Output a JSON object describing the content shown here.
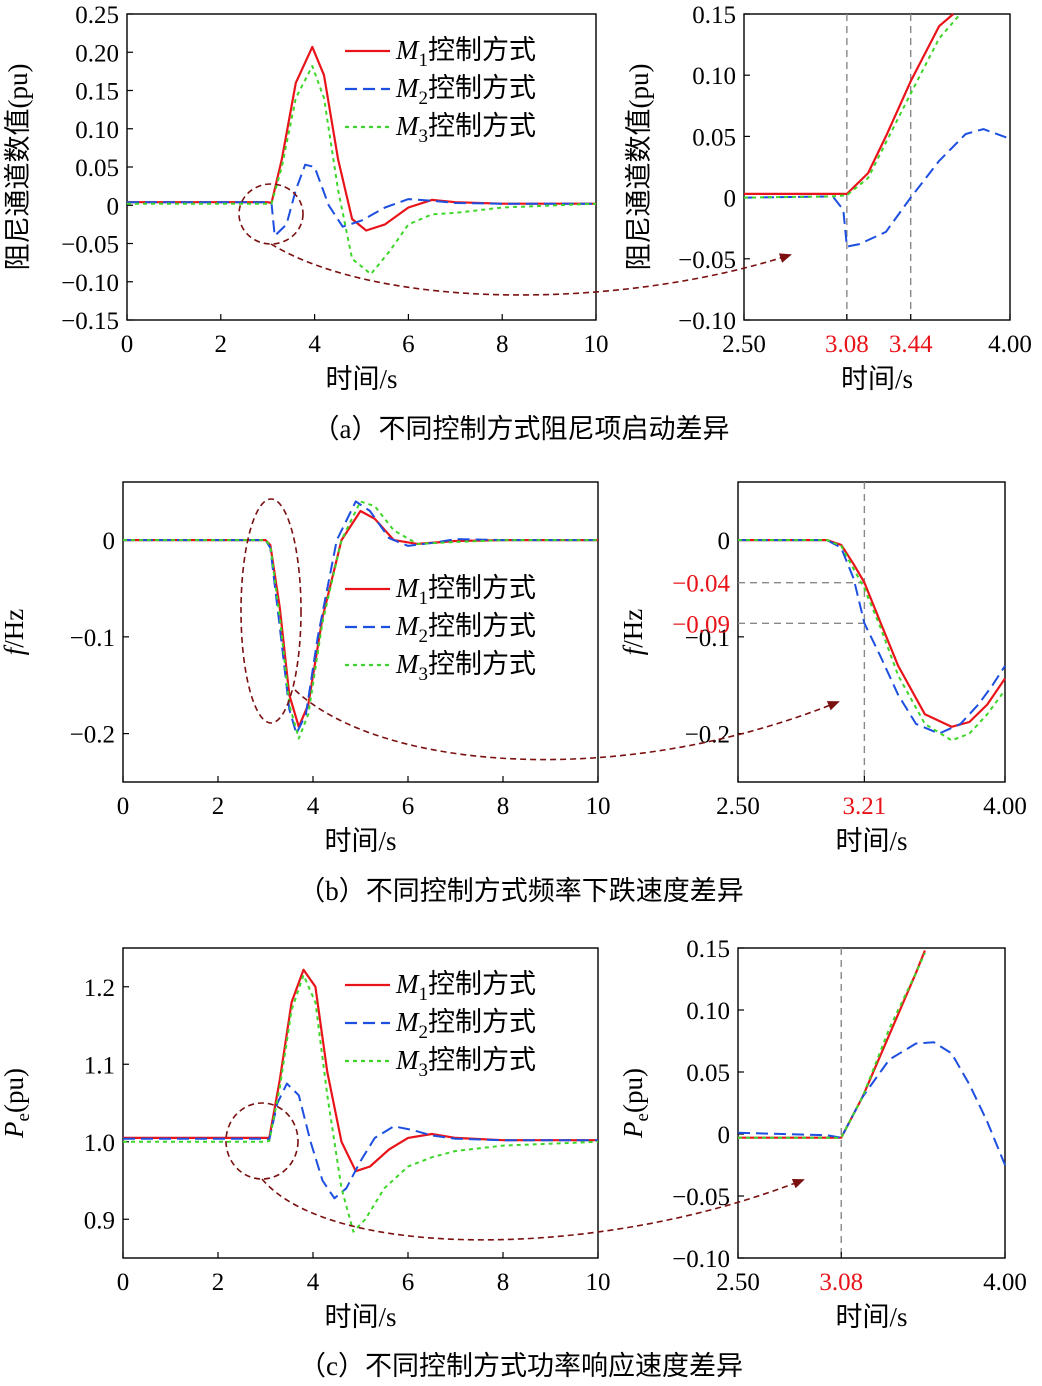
{
  "panels": [
    {
      "caption": "（a）不同控制方式阻尼项启动差异",
      "chart_data": [
        {
          "type": "line",
          "xlabel": "时间/s",
          "ylabel": "阻尼通道数值(pu)",
          "xlim": [
            0,
            10
          ],
          "ylim": [
            -0.15,
            0.25
          ],
          "xticks": [
            "0",
            "2",
            "4",
            "6",
            "8",
            "10"
          ],
          "yticks": [
            "−0.15",
            "−0.10",
            "−0.05",
            "0",
            "0.05",
            "0.10",
            "0.15",
            "0.20",
            "0.25"
          ],
          "legend": "top-right",
          "series": [
            {
              "name": "M1控制方式",
              "legend_main": "M",
              "legend_sub": "1",
              "legend_suffix": "控制方式",
              "color": "#e8141a",
              "dash": "solid",
              "x": [
                0,
                3.0,
                3.08,
                3.3,
                3.6,
                3.95,
                4.2,
                4.5,
                4.8,
                5.1,
                5.5,
                6.0,
                6.5,
                7.0,
                8.0,
                10
              ],
              "y": [
                0.004,
                0.004,
                0.003,
                0.06,
                0.16,
                0.207,
                0.17,
                0.06,
                -0.018,
                -0.033,
                -0.025,
                -0.003,
                0.007,
                0.004,
                0.002,
                0.002
              ]
            },
            {
              "name": "M2控制方式",
              "legend_main": "M",
              "legend_sub": "2",
              "legend_suffix": "控制方式",
              "color": "#1d4fe0",
              "dash": "dashed",
              "x": [
                0,
                3.0,
                3.08,
                3.15,
                3.4,
                3.6,
                3.8,
                4.0,
                4.3,
                4.6,
                5.0,
                5.5,
                6.0,
                6.5,
                7.0,
                8.0,
                10
              ],
              "y": [
                0.004,
                0.004,
                0.003,
                -0.04,
                -0.025,
                0.02,
                0.053,
                0.05,
                0.0,
                -0.028,
                -0.02,
                -0.003,
                0.008,
                0.006,
                0.003,
                0.002,
                0.002
              ]
            },
            {
              "name": "M3控制方式",
              "legend_main": "M",
              "legend_sub": "3",
              "legend_suffix": "控制方式",
              "color": "#3ed62a",
              "dash": "dotted",
              "x": [
                0,
                3.0,
                3.08,
                3.3,
                3.6,
                3.95,
                4.2,
                4.5,
                4.8,
                5.2,
                5.6,
                6.0,
                6.5,
                7.0,
                8.0,
                10
              ],
              "y": [
                0.002,
                0.002,
                0.002,
                0.05,
                0.14,
                0.182,
                0.14,
                0.02,
                -0.07,
                -0.09,
                -0.06,
                -0.025,
                -0.012,
                -0.01,
                -0.003,
                0.002
              ]
            }
          ]
        },
        {
          "type": "line",
          "xlabel": "时间/s",
          "ylabel": "阻尼通道数值(pu)",
          "xlim": [
            2.5,
            4.0
          ],
          "ylim": [
            -0.1,
            0.15
          ],
          "xticks": [
            "2.50",
            "3.08",
            "3.44",
            "4.00"
          ],
          "yticks": [
            "−0.10",
            "−0.05",
            "0",
            "0.05",
            "0.10",
            "0.15"
          ],
          "highlight_ticks": [
            "3.08",
            "3.44"
          ],
          "marker_x": [
            3.08,
            3.44
          ],
          "series": [
            {
              "name": "M1控制方式",
              "color": "#e8141a",
              "dash": "solid",
              "x": [
                2.5,
                3.0,
                3.08,
                3.2,
                3.3,
                3.44,
                3.6,
                3.68
              ],
              "y": [
                0.003,
                0.003,
                0.003,
                0.02,
                0.05,
                0.095,
                0.14,
                0.15
              ]
            },
            {
              "name": "M2控制方式",
              "color": "#1d4fe0",
              "dash": "dashed",
              "x": [
                2.5,
                3.0,
                3.06,
                3.08,
                3.15,
                3.3,
                3.44,
                3.6,
                3.75,
                3.85,
                4.0
              ],
              "y": [
                0.0,
                0.001,
                -0.01,
                -0.04,
                -0.038,
                -0.028,
                0.0,
                0.03,
                0.052,
                0.056,
                0.048
              ]
            },
            {
              "name": "M3控制方式",
              "color": "#3ed62a",
              "dash": "dotted",
              "x": [
                2.5,
                3.0,
                3.08,
                3.2,
                3.3,
                3.44,
                3.6,
                3.72
              ],
              "y": [
                0.0,
                0.001,
                0.002,
                0.016,
                0.045,
                0.085,
                0.13,
                0.15
              ]
            }
          ]
        }
      ]
    },
    {
      "caption": "（b）不同控制方式频率下跌速度差异",
      "chart_data": [
        {
          "type": "line",
          "xlabel": "时间/s",
          "ylabel": "f/Hz",
          "xlim": [
            0,
            10
          ],
          "ylim": [
            -0.25,
            0.06
          ],
          "xticks": [
            "0",
            "2",
            "4",
            "6",
            "8",
            "10"
          ],
          "yticks": [
            "0",
            "−0.1",
            "−0.2"
          ],
          "legend": "center-right",
          "series": [
            {
              "name": "M1控制方式",
              "legend_main": "M",
              "legend_sub": "1",
              "legend_suffix": "控制方式",
              "color": "#e8141a",
              "dash": "solid",
              "x": [
                0,
                3.0,
                3.1,
                3.3,
                3.5,
                3.7,
                3.9,
                4.2,
                4.6,
                5.0,
                5.3,
                5.7,
                6.2,
                7.0,
                8.0,
                10
              ],
              "y": [
                0,
                0,
                -0.005,
                -0.07,
                -0.16,
                -0.193,
                -0.17,
                -0.08,
                0.0,
                0.03,
                0.022,
                0.0,
                -0.004,
                -0.001,
                0.0,
                0.0
              ]
            },
            {
              "name": "M2控制方式",
              "legend_main": "M",
              "legend_sub": "2",
              "legend_suffix": "控制方式",
              "color": "#1d4fe0",
              "dash": "dashed",
              "x": [
                0,
                3.0,
                3.1,
                3.3,
                3.5,
                3.65,
                3.85,
                4.1,
                4.5,
                4.9,
                5.2,
                5.6,
                6.0,
                6.5,
                7.0,
                8.0,
                10
              ],
              "y": [
                0,
                0,
                -0.008,
                -0.09,
                -0.175,
                -0.2,
                -0.18,
                -0.1,
                0.0,
                0.04,
                0.03,
                0.002,
                -0.006,
                -0.003,
                0.001,
                0.0,
                0.0
              ]
            },
            {
              "name": "M3控制方式",
              "legend_main": "M",
              "legend_sub": "3",
              "legend_suffix": "控制方式",
              "color": "#3ed62a",
              "dash": "dotted",
              "x": [
                0,
                3.0,
                3.1,
                3.3,
                3.5,
                3.7,
                3.9,
                4.2,
                4.6,
                5.0,
                5.3,
                5.7,
                6.2,
                7.0,
                8.0,
                10
              ],
              "y": [
                0,
                0,
                -0.006,
                -0.08,
                -0.17,
                -0.205,
                -0.18,
                -0.085,
                0.0,
                0.04,
                0.035,
                0.01,
                -0.004,
                -0.002,
                0.0,
                0.0
              ]
            }
          ]
        },
        {
          "type": "line",
          "xlabel": "时间/s",
          "ylabel": "f/Hz",
          "xlim": [
            2.5,
            4.0
          ],
          "ylim": [
            -0.25,
            0.06
          ],
          "xticks": [
            "2.50",
            "3.21",
            "4.00"
          ],
          "yticks": [
            "0",
            "−0.1",
            "−0.2"
          ],
          "highlight_ticks": [
            "3.21",
            "−0.04",
            "−0.09"
          ],
          "extra_yticks": [
            "−0.04",
            "−0.09"
          ],
          "marker_x": [
            3.21
          ],
          "marker_y": [
            -0.044,
            -0.086
          ],
          "series": [
            {
              "name": "M1控制方式",
              "color": "#e8141a",
              "dash": "solid",
              "x": [
                2.5,
                3.0,
                3.08,
                3.15,
                3.21,
                3.3,
                3.4,
                3.55,
                3.7,
                3.8,
                3.9,
                4.0
              ],
              "y": [
                0,
                0,
                -0.005,
                -0.025,
                -0.044,
                -0.085,
                -0.13,
                -0.18,
                -0.193,
                -0.188,
                -0.17,
                -0.143
              ]
            },
            {
              "name": "M2控制方式",
              "color": "#1d4fe0",
              "dash": "dashed",
              "x": [
                2.5,
                3.0,
                3.08,
                3.15,
                3.21,
                3.3,
                3.4,
                3.5,
                3.63,
                3.75,
                3.85,
                3.93,
                4.0
              ],
              "y": [
                0,
                0,
                -0.008,
                -0.04,
                -0.086,
                -0.12,
                -0.16,
                -0.19,
                -0.2,
                -0.19,
                -0.17,
                -0.15,
                -0.13
              ]
            },
            {
              "name": "M3控制方式",
              "color": "#3ed62a",
              "dash": "dotted",
              "x": [
                2.5,
                3.0,
                3.08,
                3.15,
                3.21,
                3.3,
                3.4,
                3.55,
                3.7,
                3.8,
                3.9,
                4.0
              ],
              "y": [
                0,
                0,
                -0.006,
                -0.03,
                -0.05,
                -0.09,
                -0.14,
                -0.19,
                -0.207,
                -0.2,
                -0.18,
                -0.155
              ]
            }
          ]
        }
      ]
    },
    {
      "caption": "（c）不同控制方式功率响应速度差异",
      "chart_data": [
        {
          "type": "line",
          "xlabel": "时间/s",
          "ylabel_main": "P",
          "ylabel_sub": "e",
          "ylabel_suffix": "(pu)",
          "xlim": [
            0,
            10
          ],
          "ylim": [
            0.85,
            1.25
          ],
          "xticks": [
            "0",
            "2",
            "4",
            "6",
            "8",
            "10"
          ],
          "yticks": [
            "0.9",
            "1.0",
            "1.1",
            "1.2"
          ],
          "legend": "top-right",
          "series": [
            {
              "name": "M1控制方式",
              "legend_main": "M",
              "legend_sub": "1",
              "legend_suffix": "控制方式",
              "color": "#e8141a",
              "dash": "solid",
              "x": [
                0,
                3.0,
                3.08,
                3.3,
                3.55,
                3.8,
                4.05,
                4.3,
                4.6,
                4.9,
                5.2,
                5.6,
                6.0,
                6.5,
                7.0,
                8.0,
                10
              ],
              "y": [
                1.005,
                1.005,
                1.005,
                1.08,
                1.18,
                1.222,
                1.2,
                1.09,
                1.0,
                0.962,
                0.968,
                0.99,
                1.005,
                1.01,
                1.005,
                1.002,
                1.002
              ]
            },
            {
              "name": "M2控制方式",
              "legend_main": "M",
              "legend_sub": "2",
              "legend_suffix": "控制方式",
              "color": "#1d4fe0",
              "dash": "dashed",
              "x": [
                0,
                3.0,
                3.08,
                3.25,
                3.45,
                3.7,
                3.95,
                4.2,
                4.45,
                4.7,
                5.0,
                5.3,
                5.7,
                6.1,
                6.5,
                7.0,
                8.0,
                10
              ],
              "y": [
                1.004,
                1.004,
                1.003,
                1.05,
                1.075,
                1.06,
                1.0,
                0.95,
                0.927,
                0.94,
                0.975,
                1.005,
                1.02,
                1.015,
                1.008,
                1.004,
                1.002,
                1.002
              ]
            },
            {
              "name": "M3控制方式",
              "legend_main": "M",
              "legend_sub": "3",
              "legend_suffix": "控制方式",
              "color": "#3ed62a",
              "dash": "dotted",
              "x": [
                0,
                3.0,
                3.08,
                3.3,
                3.55,
                3.8,
                4.05,
                4.3,
                4.6,
                4.85,
                5.1,
                5.5,
                6.0,
                6.5,
                7.0,
                8.0,
                10
              ],
              "y": [
                1.0,
                1.0,
                1.001,
                1.07,
                1.17,
                1.215,
                1.18,
                1.06,
                0.94,
                0.884,
                0.9,
                0.94,
                0.968,
                0.98,
                0.988,
                0.995,
                1.0
              ]
            }
          ]
        },
        {
          "type": "line",
          "xlabel": "时间/s",
          "ylabel_main": "P",
          "ylabel_sub": "e",
          "ylabel_suffix": "(pu)",
          "xlim": [
            2.5,
            4.0
          ],
          "ylim": [
            -0.1,
            0.15
          ],
          "xticks": [
            "2.50",
            "3.08",
            "4.00"
          ],
          "yticks": [
            "−0.10",
            "−0.05",
            "0",
            "0.05",
            "0.10",
            "0.15"
          ],
          "highlight_ticks": [
            "3.08"
          ],
          "marker_x": [
            3.08
          ],
          "series": [
            {
              "name": "M1控制方式",
              "color": "#e8141a",
              "dash": "solid",
              "x": [
                2.5,
                3.0,
                3.08,
                3.2,
                3.35,
                3.5,
                3.55
              ],
              "y": [
                -0.003,
                -0.003,
                -0.003,
                0.03,
                0.08,
                0.13,
                0.148
              ]
            },
            {
              "name": "M2控制方式",
              "color": "#1d4fe0",
              "dash": "dashed",
              "x": [
                2.5,
                3.0,
                3.08,
                3.2,
                3.35,
                3.5,
                3.6,
                3.7,
                3.8,
                3.9,
                4.0
              ],
              "y": [
                0.001,
                -0.001,
                -0.003,
                0.03,
                0.06,
                0.073,
                0.074,
                0.065,
                0.04,
                0.01,
                -0.025
              ]
            },
            {
              "name": "M3控制方式",
              "color": "#3ed62a",
              "dash": "dotted",
              "x": [
                2.5,
                3.0,
                3.08,
                3.2,
                3.35,
                3.5,
                3.55
              ],
              "y": [
                -0.003,
                -0.003,
                -0.003,
                0.03,
                0.085,
                0.13,
                0.146
              ]
            }
          ]
        }
      ]
    }
  ]
}
